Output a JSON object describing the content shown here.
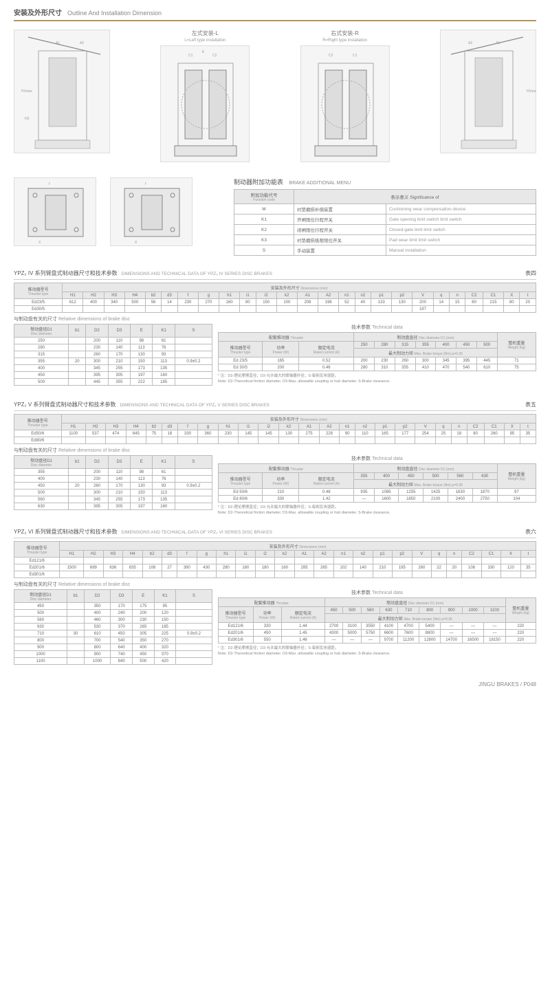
{
  "header": {
    "cn": "安装及外形尺寸",
    "en": "Outline And Installation Dimension"
  },
  "drawings": {
    "left": {
      "cn": "左式安装-L",
      "en": "L=Left type installation"
    },
    "right": {
      "cn": "右式安装-R",
      "en": "R=Right type installation"
    }
  },
  "addMenu": {
    "title_cn": "制动器附加功能表",
    "title_en": "BRAKE ADDITIONAL MENU",
    "headers": {
      "code_cn": "附加功能代号",
      "code_en": "Function code",
      "sig_cn": "表示意义",
      "sig_en": "Significance of"
    },
    "rows": [
      {
        "code": "M",
        "cn": "衬垫磨损补偿装置",
        "en": "Cushioning wear compensation device"
      },
      {
        "code": "K1",
        "cn": "开闸限位行程开关",
        "en": "Gate opening limit switch limit switch"
      },
      {
        "code": "K2",
        "cn": "闭闸限位行程开关",
        "en": "Closed-gate limit limit switch"
      },
      {
        "code": "K3",
        "cn": "衬垫磨损极限限位开关",
        "en": "Pad wear limit limit switch"
      },
      {
        "code": "S",
        "cn": "手动装置",
        "en": "Manual installation"
      }
    ]
  },
  "sections": [
    {
      "title_cn": "YPZ₂ IV 系列臂盘式制动器尺寸和技术参数",
      "title_en": "DIMENSIONS AND TECHNICAL DATA OF YPZ₂ IV SERIES DISC BRAKES",
      "table_num": "表四",
      "dimHeader_cn": "安装及外形尺寸",
      "dimHeader_en": "Dimensions (mm)",
      "thrusterLabel_cn": "推动器型号",
      "thrusterLabel_en": "Thruster type",
      "dimCols": [
        "H1",
        "H2",
        "H3",
        "H4",
        "b2",
        "d3",
        "f",
        "g",
        "h1",
        "i1",
        "i2",
        "k2",
        "A1",
        "A2",
        "n1",
        "n2",
        "p1",
        "p2",
        "V",
        "q",
        "n",
        "C2",
        "C1",
        "X",
        "t"
      ],
      "dimRows": [
        {
          "name": "Ed23/5",
          "v": [
            "612",
            "400",
            "340",
            "500",
            "56",
            "14",
            "230",
            "270",
            "160",
            "80",
            "150",
            "100",
            "208",
            "198",
            "52",
            "40",
            "133",
            "130",
            "200",
            "14",
            "15",
            "60",
            "215",
            "80",
            "20"
          ]
        },
        {
          "name": "Ed30/5",
          "v": [
            "",
            "",
            "",
            "",
            "",
            "",
            "",
            "",
            "",
            "",
            "",
            "",
            "",
            "",
            "",
            "",
            "",
            "",
            "197",
            "",
            "",
            "",
            "",
            "",
            ""
          ]
        }
      ],
      "relDim_cn": "与制动盘有关的尺寸",
      "relDim_en": "Relative dimensions of brake disc",
      "discLabel_cn": "制动盘径D1",
      "discLabel_en": "Disc diameter",
      "relCols": [
        "b1",
        "D2",
        "D3",
        "E",
        "K1",
        "S"
      ],
      "relRows": [
        {
          "d": "250",
          "v": [
            "",
            "200",
            "110",
            "98",
            "61",
            ""
          ]
        },
        {
          "d": "280",
          "v": [
            "",
            "230",
            "140",
            "113",
            "76",
            ""
          ]
        },
        {
          "d": "315",
          "v": [
            "",
            "260",
            "170",
            "130",
            "93",
            ""
          ]
        },
        {
          "d": "355",
          "v": [
            "20",
            "300",
            "210",
            "150",
            "113",
            "0.9±0.2"
          ]
        },
        {
          "d": "400",
          "v": [
            "",
            "345",
            "255",
            "173",
            "135",
            ""
          ]
        },
        {
          "d": "450",
          "v": [
            "",
            "395",
            "305",
            "197",
            "160",
            ""
          ]
        },
        {
          "d": "500",
          "v": [
            "",
            "445",
            "355",
            "222",
            "185",
            ""
          ]
        }
      ],
      "techHeader_cn": "技术参数",
      "techHeader_en": "Technical data",
      "thrusterHdr_cn": "配套推动器",
      "thrusterHdr_en": "Thruster",
      "discDiamHdr_cn": "制动盘直径",
      "discDiamHdr_en": "Disc diameter D1 (mm)",
      "weightHdr_cn": "整机重量",
      "weightHdr_en": "Weight (kg)",
      "thrTypeHdr_cn": "推动器型号",
      "thrTypeHdr_en": "Thruster type",
      "powerHdr_cn": "功率",
      "powerHdr_en": "Power (W)",
      "currentHdr_cn": "额定电流",
      "currentHdr_en": "Rated current (A)",
      "torqueHdr_cn": "最大制动力矩",
      "torqueHdr_en": "Max. Brake torque (Nm)  μ=0.36",
      "discDiams": [
        "250",
        "280",
        "315",
        "355",
        "400",
        "450",
        "500"
      ],
      "techRows": [
        {
          "name": "Ed 23/5",
          "power": "165",
          "curr": "0.52",
          "torques": [
            "200",
            "230",
            "260",
            "300",
            "345",
            "395",
            "445"
          ],
          "wt": "71"
        },
        {
          "name": "Ed 30/5",
          "power": "200",
          "curr": "0.46",
          "torques": [
            "280",
            "310",
            "355",
            "410",
            "470",
            "540",
            "610"
          ],
          "wt": "75"
        }
      ],
      "note_cn": "* 注：D2-理论摩擦直径；D3-允许最大的联轴器外径；S-每侧瓦块退距。",
      "note_en": "Note: D2-Theoretical friction diameter. D3-Max. allowable coupling or hub diameter. S-Brake clearance."
    },
    {
      "title_cn": "YPZ₂ V 系列臂盘式制动器尺寸和技术参数",
      "title_en": "DIMENSIONS AND TECHNICAL DATA OF YPZ₂ V SERIES DISC BRAKES",
      "table_num": "表五",
      "dimRows": [
        {
          "name": "Ed50/6",
          "v": [
            "1100",
            "537",
            "474",
            "645",
            "75",
            "18",
            "330",
            "360",
            "230",
            "145",
            "145",
            "130",
            "275",
            "228",
            "90",
            "110",
            "165",
            "177",
            "254",
            "25",
            "18",
            "80",
            "260",
            "95",
            "35"
          ]
        },
        {
          "name": "Ed80/6",
          "v": [
            "",
            "",
            "",
            "",
            "",
            "",
            "",
            "",
            "",
            "",
            "",
            "",
            "",
            "",
            "",
            "",
            "",
            "",
            "",
            "",
            "",
            "",
            "",
            "",
            ""
          ]
        }
      ],
      "relRows": [
        {
          "d": "355",
          "v": [
            "",
            "200",
            "110",
            "98",
            "61",
            ""
          ]
        },
        {
          "d": "400",
          "v": [
            "",
            "230",
            "140",
            "113",
            "76",
            ""
          ]
        },
        {
          "d": "450",
          "v": [
            "20",
            "260",
            "170",
            "130",
            "93",
            "0.9±0.2"
          ]
        },
        {
          "d": "500",
          "v": [
            "",
            "300",
            "210",
            "150",
            "113",
            ""
          ]
        },
        {
          "d": "560",
          "v": [
            "",
            "345",
            "255",
            "173",
            "135",
            ""
          ]
        },
        {
          "d": "630",
          "v": [
            "",
            "395",
            "305",
            "197",
            "160",
            ""
          ]
        }
      ],
      "discDiams": [
        "355",
        "400",
        "450",
        "500",
        "560",
        "630"
      ],
      "techRows": [
        {
          "name": "Ed 50/6",
          "power": "210",
          "curr": "0.48",
          "torques": [
            "935",
            "1085",
            "1255",
            "1425",
            "1630",
            "1870"
          ],
          "wt": "97"
        },
        {
          "name": "Ed 80/6",
          "power": "330",
          "curr": "1.42",
          "torques": [
            "—",
            "1600",
            "1850",
            "2100",
            "2400",
            "2750"
          ],
          "wt": "104"
        }
      ]
    },
    {
      "title_cn": "YPZ₂ VI 系列臂盘式制动器尺寸和技术参数",
      "title_en": "DIMENSIONS AND TECHNICAL DATA OF YPZ₂ VI SERIES DISC BRAKES",
      "table_num": "表六",
      "dimRows": [
        {
          "name": "Ed121/6",
          "v": [
            "",
            "",
            "",
            "",
            "",
            "",
            "",
            "",
            "",
            "",
            "",
            "",
            "",
            "",
            "",
            "",
            "",
            "",
            "",
            "",
            "",
            "",
            "",
            "",
            ""
          ]
        },
        {
          "name": "Ed201/6",
          "v": [
            "1500",
            "699",
            "636",
            "835",
            "108",
            "27",
            "390",
            "430",
            "280",
            "180",
            "180",
            "160",
            "285",
            "265",
            "102",
            "140",
            "210",
            "195",
            "260",
            "22",
            "20",
            "108",
            "330",
            "120",
            "35"
          ]
        },
        {
          "name": "Ed301/6",
          "v": [
            "",
            "",
            "",
            "",
            "",
            "",
            "",
            "",
            "",
            "",
            "",
            "",
            "",
            "",
            "",
            "",
            "",
            "",
            "",
            "",
            "",
            "",
            "",
            "",
            ""
          ]
        }
      ],
      "relRows": [
        {
          "d": "450",
          "v": [
            "",
            "350",
            "170",
            "175",
            "95",
            ""
          ]
        },
        {
          "d": "500",
          "v": [
            "",
            "400",
            "240",
            "200",
            "120",
            ""
          ]
        },
        {
          "d": "560",
          "v": [
            "",
            "460",
            "300",
            "230",
            "150",
            ""
          ]
        },
        {
          "d": "630",
          "v": [
            "",
            "530",
            "370",
            "265",
            "185",
            ""
          ]
        },
        {
          "d": "710",
          "v": [
            "30",
            "610",
            "450",
            "305",
            "225",
            "0.9±0.2"
          ]
        },
        {
          "d": "800",
          "v": [
            "",
            "700",
            "540",
            "350",
            "270",
            ""
          ]
        },
        {
          "d": "900",
          "v": [
            "",
            "800",
            "640",
            "400",
            "320",
            ""
          ]
        },
        {
          "d": "1000",
          "v": [
            "",
            "900",
            "740",
            "450",
            "370",
            ""
          ]
        },
        {
          "d": "1100",
          "v": [
            "",
            "1000",
            "840",
            "500",
            "420",
            ""
          ]
        }
      ],
      "discDiams": [
        "450",
        "500",
        "560",
        "630",
        "710",
        "800",
        "900",
        "1000",
        "1100"
      ],
      "techRows": [
        {
          "name": "Ed121/6",
          "power": "330",
          "curr": "1.44",
          "torques": [
            "2700",
            "3100",
            "3550",
            "4100",
            "4700",
            "5400",
            "—",
            "—",
            "—"
          ],
          "wt": "220"
        },
        {
          "name": "Ed201/6",
          "power": "450",
          "curr": "1.45",
          "torques": [
            "4300",
            "5000",
            "5750",
            "6600",
            "7600",
            "8800",
            "—",
            "—",
            "—"
          ],
          "wt": "220"
        },
        {
          "name": "Ed301/6",
          "power": "550",
          "curr": "1.46",
          "torques": [
            "—",
            "—",
            "—",
            "9700",
            "11200",
            "12800",
            "14700",
            "16500",
            "18150"
          ],
          "wt": "220"
        }
      ]
    }
  ],
  "footer": "JINGU BRAKES / P048"
}
